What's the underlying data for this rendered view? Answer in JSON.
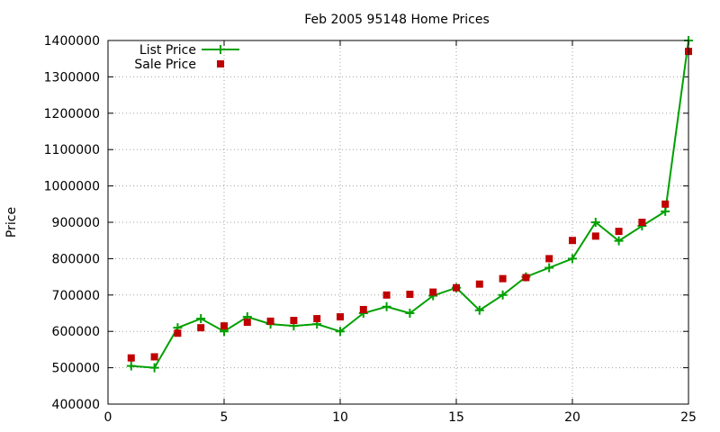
{
  "chart_data": {
    "type": "line",
    "title": "Feb 2005 95148 Home Prices",
    "xlabel": "",
    "ylabel": "Price",
    "xlim": [
      0,
      25
    ],
    "ylim": [
      400000,
      1400000
    ],
    "xticks": [
      0,
      5,
      10,
      15,
      20,
      25
    ],
    "yticks": [
      400000,
      500000,
      600000,
      700000,
      800000,
      900000,
      1000000,
      1100000,
      1200000,
      1300000,
      1400000
    ],
    "grid": true,
    "legend_position": "top-left",
    "series": [
      {
        "name": "List Price",
        "style": "line-with-plus-markers",
        "color": "#00a000",
        "x": [
          1,
          2,
          3,
          4,
          5,
          6,
          7,
          8,
          9,
          10,
          11,
          12,
          13,
          14,
          15,
          16,
          17,
          18,
          19,
          20,
          21,
          22,
          23,
          24,
          25
        ],
        "y": [
          505000,
          500000,
          610000,
          635000,
          600000,
          640000,
          620000,
          615000,
          620000,
          600000,
          650000,
          668000,
          650000,
          698000,
          720000,
          658000,
          700000,
          750000,
          775000,
          800000,
          900000,
          849000,
          890000,
          930000,
          1400000
        ]
      },
      {
        "name": "Sale Price",
        "style": "square-markers",
        "color": "#c00000",
        "x": [
          1,
          2,
          3,
          4,
          5,
          6,
          7,
          8,
          9,
          10,
          11,
          12,
          13,
          14,
          15,
          16,
          17,
          18,
          19,
          20,
          21,
          22,
          23,
          24,
          25
        ],
        "y": [
          527000,
          530000,
          595000,
          610000,
          615000,
          625000,
          628000,
          630000,
          635000,
          640000,
          660000,
          700000,
          702000,
          708000,
          720000,
          730000,
          745000,
          748000,
          800000,
          850000,
          862000,
          875000,
          900000,
          950000,
          1370000
        ]
      }
    ]
  }
}
